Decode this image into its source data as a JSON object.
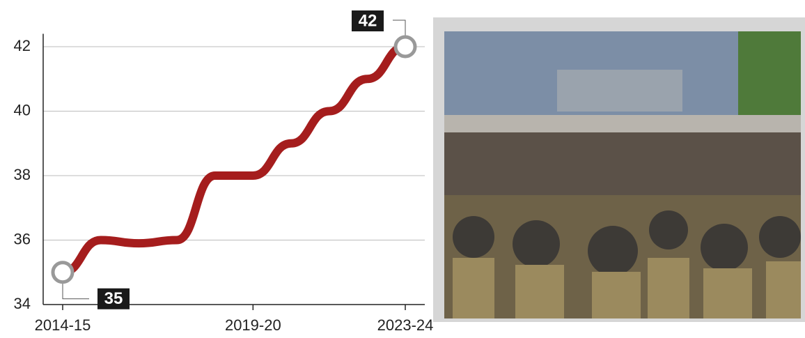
{
  "chart_data": {
    "type": "line",
    "categories": [
      "2014-15",
      null,
      null,
      null,
      null,
      "2019-20",
      null,
      null,
      null,
      "2023-24"
    ],
    "values": [
      35,
      36,
      35.9,
      36,
      38,
      38,
      39,
      40,
      41,
      42
    ],
    "color": "#a51d1d",
    "ylim": [
      34,
      42.4
    ],
    "yticks": [
      34,
      36,
      38,
      40,
      42
    ],
    "grid": true
  }
}
